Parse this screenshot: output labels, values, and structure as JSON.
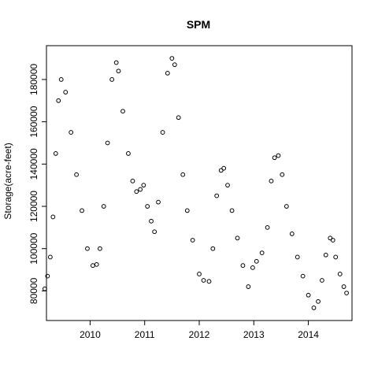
{
  "chart_data": {
    "type": "scatter",
    "title": "SPM",
    "xlabel": "",
    "ylabel": "Storage(acre-feet)",
    "xlim": [
      2009.2,
      2014.8
    ],
    "ylim": [
      66000,
      196000
    ],
    "x_ticks": [
      2010,
      2011,
      2012,
      2013,
      2014
    ],
    "x_tick_labels": [
      "2010",
      "2011",
      "2012",
      "2013",
      "2014"
    ],
    "y_ticks": [
      80000,
      100000,
      120000,
      140000,
      160000,
      180000
    ],
    "y_tick_labels": [
      "80000",
      "100000",
      "120000",
      "140000",
      "160000",
      "180000"
    ],
    "marker": "open-circle",
    "point_color": "#000000",
    "grid": false,
    "legend": "none",
    "series": [
      {
        "x": [
          2009.17,
          2009.22,
          2009.27,
          2009.32,
          2009.37,
          2009.42,
          2009.47,
          2009.55,
          2009.65,
          2009.75,
          2009.85,
          2009.95,
          2010.05,
          2010.12,
          2010.18,
          2010.25,
          2010.32,
          2010.4,
          2010.48,
          2010.52,
          2010.6,
          2010.7,
          2010.78,
          2010.85,
          2010.92,
          2010.98,
          2011.05,
          2011.12,
          2011.18,
          2011.25,
          2011.33,
          2011.42,
          2011.5,
          2011.55,
          2011.62,
          2011.7,
          2011.78,
          2011.88,
          2012.0,
          2012.08,
          2012.18,
          2012.25,
          2012.32,
          2012.4,
          2012.45,
          2012.52,
          2012.6,
          2012.7,
          2012.8,
          2012.9,
          2012.98,
          2013.05,
          2013.15,
          2013.25,
          2013.32,
          2013.38,
          2013.45,
          2013.52,
          2013.6,
          2013.7,
          2013.8,
          2013.9,
          2014.0,
          2014.1,
          2014.18,
          2014.25,
          2014.32,
          2014.4,
          2014.45,
          2014.5,
          2014.58,
          2014.65,
          2014.7
        ],
        "y": [
          81000,
          87000,
          96000,
          115000,
          145000,
          170000,
          180000,
          174000,
          155000,
          135000,
          118000,
          100000,
          92000,
          92500,
          100000,
          120000,
          150000,
          180000,
          188000,
          184000,
          165000,
          145000,
          132000,
          127000,
          128000,
          130000,
          120000,
          113000,
          108000,
          122000,
          155000,
          183000,
          190000,
          187000,
          162000,
          135000,
          118000,
          104000,
          88000,
          85000,
          84500,
          100000,
          125000,
          137000,
          138000,
          130000,
          118000,
          105000,
          92000,
          82000,
          91000,
          94000,
          98000,
          110000,
          132000,
          143000,
          144000,
          135000,
          120000,
          107000,
          96000,
          87000,
          78000,
          72000,
          75000,
          85000,
          97000,
          105000,
          104000,
          96000,
          88000,
          82000,
          79000
        ]
      }
    ]
  }
}
